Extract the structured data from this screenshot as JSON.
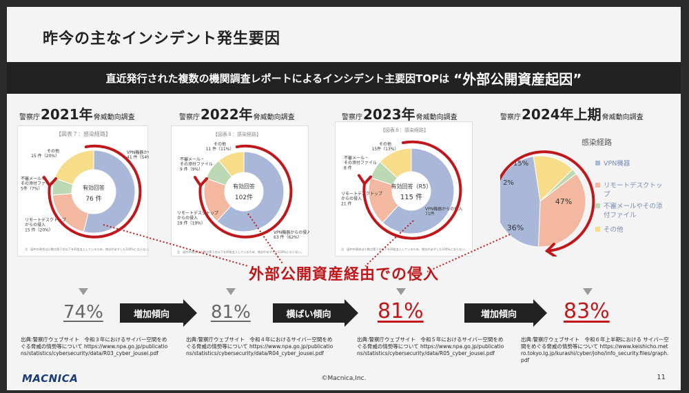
{
  "slide": {
    "title": "昨今の主なインシデント発生要因",
    "banner_text": "直近発行された複数の機関調査レポートによるインシデント主要因TOPは",
    "banner_emphasis": "“外部公開資産起因”",
    "center_label": "外部公開資産経由での侵入",
    "logo": "MACNICA",
    "copyright": "©Macnica,Inc.",
    "page_number": "11"
  },
  "colors": {
    "accent_red": "#c0171a",
    "vpn_blue": "#a9b7d8",
    "rdp_orange": "#f2b9a0",
    "email_green": "#bcd9b4",
    "other_yellow": "#f7dc8a"
  },
  "reports": [
    {
      "source": "警察庁",
      "year": "2021年",
      "kind": "脅威動向調査",
      "panel_title": "【図表７：感染経路】",
      "center_top": "有効回答",
      "center_bottom": "76 件",
      "labels": [
        "その他\n15 件（20%）",
        "VPN機器からの侵入\n41 件（54%）",
        "リモートデスクトップ\nからの侵入\n15 件（20%）",
        "不審メールや\nその添付ファイル\n5件（7%）"
      ],
      "note": "注　図中の割合は小数点第１位以下を四捨五入しているため、統計が必ずしも100%にならない。",
      "percent": "74%",
      "citation": "出典:警察庁ウェブサイト　令和３年におけるサイバー空間をめぐる脅威の情勢等について https://www.npa.go.jp/publications/statistics/cybersecurity/data/R03_cyber_jousei.pdf"
    },
    {
      "source": "警察庁",
      "year": "2022年",
      "kind": "脅威動向調査",
      "panel_title": "【図表８：感染経路】",
      "center_top": "有効回答",
      "center_bottom": "102件",
      "labels": [
        "その他\n11 件（11%）",
        "不審メール・\nその添付ファイル\n9 件（9%）",
        "リモートデスクトップ\nからの侵入\n19 件（19%）",
        "VPN機器からの侵入\n63 件（62%）"
      ],
      "note": "注　図中の割合は小数点第１位以下を四捨五入しているため、統計が必ずしも100%にならない。",
      "percent": "81%",
      "citation": "出典:警察庁ウェブサイト　令和４年におけるサイバー空間をめぐる脅威の情勢等について https://www.npa.go.jp/publications/statistics/cybersecurity/data/R04_cyber_jousei.pdf"
    },
    {
      "source": "警察庁",
      "year": "2023年",
      "kind": "脅威動向調査",
      "panel_title": "【図表８：感染経路】",
      "center_top": "有効回答（R5）",
      "center_bottom": "115 件",
      "labels": [
        "その他\n15件（13%）",
        "不審メール・\nその添付ファイル\n8 件",
        "リモートデスクトップ\nからの侵入\n21 件",
        "VPN機器からの侵入\n71件"
      ],
      "note": "注　図中の割合は小数点第１位以下を四捨五入しているため、統計が必ずしも100%にならない。",
      "percent": "81%",
      "citation": "出典:警察庁ウェブサイト　令和５年におけるサイバー空間をめぐる脅威の情勢等について https://www.npa.go.jp/publications/statistics/cybersecurity/data/R05_cyber_jousei.pdf"
    },
    {
      "source": "警察庁",
      "year": "2024年上期",
      "kind": "脅威動向調査",
      "panel_title": "感染経路",
      "slice_labels": [
        "15%",
        "2%",
        "47%",
        "36%"
      ],
      "legend": [
        "VPN機器",
        "リモートデスクトップ",
        "不審メールやその添付ファイル",
        "その他"
      ],
      "percent": "83%",
      "citation": "出典:警察庁ウェブサイト　令和６年上半期における サイバー空間をめぐる脅威の情勢等について https://www.keishicho.metro.tokyo.lg.jp/kurashi/cyber/joho/info_security.files/graph.pdf"
    }
  ],
  "trends": [
    "増加傾向",
    "横ばい傾向",
    "増加傾向"
  ],
  "chart_data": [
    {
      "type": "pie",
      "title": "【図表７：感染経路】",
      "categories": [
        "VPN機器からの侵入",
        "リモートデスクトップからの侵入",
        "不審メールやその添付ファイル",
        "その他"
      ],
      "values": [
        41,
        15,
        5,
        15
      ]
    },
    {
      "type": "pie",
      "title": "【図表８：感染経路】",
      "categories": [
        "VPN機器からの侵入",
        "リモートデスクトップからの侵入",
        "不審メール・その添付ファイル",
        "その他"
      ],
      "values": [
        63,
        19,
        9,
        11
      ]
    },
    {
      "type": "pie",
      "title": "【図表８：感染経路】",
      "categories": [
        "VPN機器からの侵入",
        "リモートデスクトップからの侵入",
        "不審メール・その添付ファイル",
        "その他"
      ],
      "values": [
        71,
        21,
        8,
        15
      ]
    },
    {
      "type": "pie",
      "title": "感染経路",
      "categories": [
        "VPN機器",
        "リモートデスクトップ",
        "不審メールやその添付ファイル",
        "その他"
      ],
      "values": [
        47,
        36,
        2,
        15
      ]
    }
  ]
}
